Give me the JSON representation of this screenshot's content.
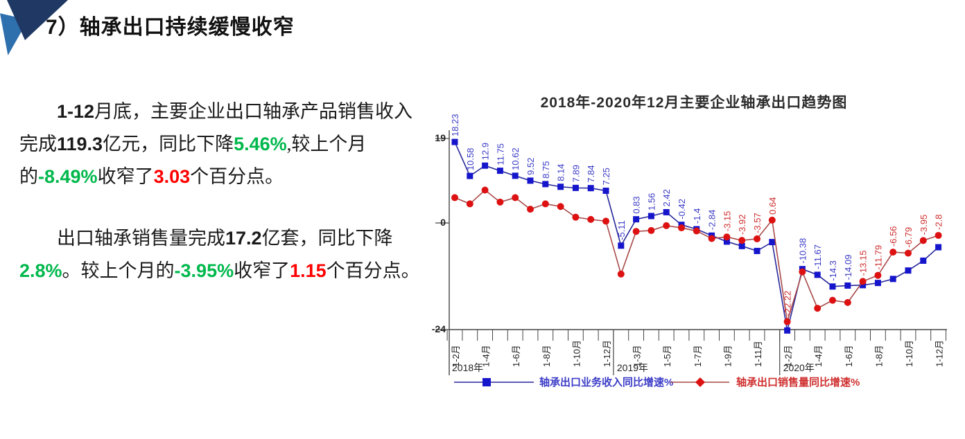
{
  "slide": {
    "heading": "7）轴承出口持续缓慢收窄"
  },
  "colors": {
    "green": "#00b84c",
    "red": "#ff0000"
  },
  "paragraphs": [
    {
      "segments": [
        {
          "t": "1-12",
          "num": true
        },
        {
          "t": "月底，主要企业出口轴承产品销售收入完成"
        },
        {
          "t": "119.3",
          "num": true
        },
        {
          "t": "亿元，同比下降"
        },
        {
          "t": "5.46%",
          "c": "green",
          "num": true
        },
        {
          "t": ",较上个月的"
        },
        {
          "t": "-8.49%",
          "c": "green",
          "num": true
        },
        {
          "t": "收窄了"
        },
        {
          "t": "3.03",
          "c": "red",
          "num": true
        },
        {
          "t": "个百分点。"
        }
      ]
    },
    {
      "segments": [
        {
          "t": "出口轴承销售量完成"
        },
        {
          "t": "17.2",
          "num": true
        },
        {
          "t": "亿套，同比下降"
        },
        {
          "t": "2.8%",
          "c": "green",
          "num": true
        },
        {
          "t": "。较上个月的"
        },
        {
          "t": "-3.95%",
          "c": "green",
          "num": true
        },
        {
          "t": "收窄了"
        },
        {
          "t": "1.15",
          "c": "red",
          "num": true
        },
        {
          "t": "个百分点。"
        }
      ]
    }
  ],
  "chart_data": {
    "type": "line",
    "title": "2018年-2020年12月主要企业轴承出口趋势图",
    "categories": [
      "1-2月",
      "1-3月",
      "1-4月",
      "1-5月",
      "1-6月",
      "1-7月",
      "1-8月",
      "1-9月",
      "1-10月",
      "1-11月",
      "1-12月",
      "1-2月",
      "1-3月",
      "1-4月",
      "1-5月",
      "1-6月",
      "1-7月",
      "1-8月",
      "1-9月",
      "1-10月",
      "1-11月",
      "1-12月",
      "1-2月",
      "1-3月",
      "1-4月",
      "1-5月",
      "1-6月",
      "1-7月",
      "1-8月",
      "1-9月",
      "1-10月",
      "1-11月",
      "1-12月"
    ],
    "year_groups": [
      {
        "label": "2018年",
        "i": 0
      },
      {
        "label": "2019年",
        "i": 11
      },
      {
        "label": "2020年",
        "i": 22
      }
    ],
    "x_tick_labels": [
      {
        "i": 0,
        "label": "1-2月"
      },
      {
        "i": 2,
        "label": "1-4月"
      },
      {
        "i": 4,
        "label": "1-6月"
      },
      {
        "i": 6,
        "label": "1-8月"
      },
      {
        "i": 8,
        "label": "1-10月"
      },
      {
        "i": 10,
        "label": "1-12月"
      },
      {
        "i": 12,
        "label": "1-3月"
      },
      {
        "i": 14,
        "label": "1-5月"
      },
      {
        "i": 16,
        "label": "1-7月"
      },
      {
        "i": 18,
        "label": "1-9月"
      },
      {
        "i": 20,
        "label": "1-11月"
      },
      {
        "i": 22,
        "label": "1-2月"
      },
      {
        "i": 24,
        "label": "1-4月"
      },
      {
        "i": 26,
        "label": "1-6月"
      },
      {
        "i": 28,
        "label": "1-8月"
      },
      {
        "i": 30,
        "label": "1-10月"
      },
      {
        "i": 32,
        "label": "1-12月"
      }
    ],
    "y_ticks": [
      19,
      0,
      -24
    ],
    "ylim": [
      -25.5,
      21
    ],
    "grid": false,
    "legend_position": "bottom",
    "series": [
      {
        "id": "revenue",
        "name": "轴承出口业务收入同比增速%",
        "marker": "square",
        "line_color": "#26269b",
        "marker_color": "#1515cc",
        "label_color": "#3c3cc8",
        "values": [
          18.23,
          10.58,
          12.9,
          11.75,
          10.62,
          9.52,
          8.75,
          8.14,
          7.89,
          7.84,
          7.25,
          -5.11,
          0.83,
          1.56,
          2.42,
          -0.42,
          -1.4,
          -2.84,
          -4.2,
          -5.2,
          -6.3,
          -4.3,
          -24.2,
          -10.38,
          -11.67,
          -14.3,
          -14.09,
          -14.0,
          -13.5,
          -12.6,
          -10.7,
          -8.49,
          -5.46
        ],
        "point_labels": [
          "18.23",
          "10.58",
          "12.9",
          "11.75",
          "10.62",
          "9.52",
          "8.75",
          "8.14",
          "7.89",
          "7.84",
          "7.25",
          "-5.11",
          "0.83",
          "1.56",
          "2.42",
          "-0.42",
          "-1.4",
          "-2.84",
          null,
          null,
          null,
          null,
          null,
          "-10.38",
          "-11.67",
          "-14.3",
          "-14.09",
          null,
          null,
          null,
          null,
          null,
          null
        ]
      },
      {
        "id": "sales-volume",
        "name": "轴承出口销售量同比增速%",
        "marker": "circle",
        "line_color": "#a84848",
        "marker_color": "#dd1111",
        "label_color": "#cf2e2e",
        "values": [
          5.7,
          4.3,
          7.4,
          4.7,
          5.7,
          3.1,
          4.3,
          3.7,
          1.3,
          0.8,
          0.4,
          -11.5,
          -1.9,
          -1.7,
          -0.6,
          -1.1,
          -1.8,
          -3.5,
          -3.15,
          -3.92,
          -3.57,
          0.64,
          -22.22,
          -11.0,
          -19.2,
          -17.4,
          -17.9,
          -13.15,
          -11.79,
          -6.56,
          -6.79,
          -3.95,
          -2.8
        ],
        "point_labels": [
          null,
          null,
          null,
          null,
          null,
          null,
          null,
          null,
          null,
          null,
          null,
          null,
          null,
          null,
          null,
          null,
          null,
          null,
          "-3.15",
          "-3.92",
          "-3.57",
          "0.64",
          "-22.22",
          null,
          null,
          null,
          null,
          "-13.15",
          "-11.79",
          "-6.56",
          "-6.79",
          "-3.95",
          "-2.8"
        ]
      }
    ]
  }
}
